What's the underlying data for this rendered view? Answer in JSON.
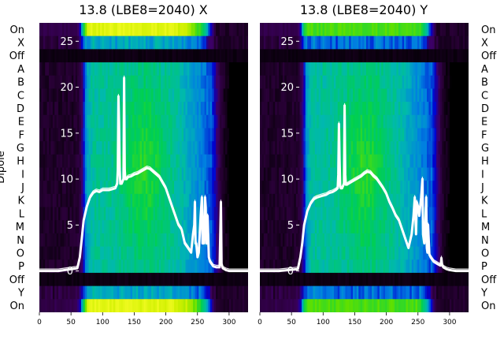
{
  "chart_data": {
    "type": "heatmap",
    "ylabel": "Dipole",
    "row_labels": [
      "On",
      "X",
      "Off",
      "A",
      "B",
      "C",
      "D",
      "E",
      "F",
      "G",
      "H",
      "I",
      "J",
      "K",
      "L",
      "M",
      "N",
      "O",
      "P",
      "Off",
      "Y",
      "On"
    ],
    "x_ticks": [
      "0",
      "50",
      "100",
      "150",
      "200",
      "250",
      "300"
    ],
    "overlay_y_ticks": [
      "0",
      "5",
      "10",
      "15",
      "20",
      "25"
    ],
    "xlim": [
      0,
      330
    ],
    "overlay_ylim": [
      -4.5,
      27
    ],
    "colormap": [
      "#000000",
      "#2a0038",
      "#3d0066",
      "#0000d0",
      "#0080e0",
      "#00b8b0",
      "#00d050",
      "#60e000",
      "#d0f000",
      "#ffff30"
    ],
    "panels": [
      {
        "title": "13.8 (LBE8=2040) X",
        "overlay_color": "#ffffff",
        "overlay_x": [
          0,
          30,
          60,
          64,
          67,
          70,
          75,
          80,
          85,
          90,
          95,
          100,
          105,
          110,
          115,
          120,
          123,
          124,
          125,
          126,
          127,
          128,
          130,
          133,
          134,
          135,
          136,
          138,
          140,
          145,
          150,
          155,
          160,
          165,
          170,
          175,
          180,
          185,
          190,
          195,
          200,
          205,
          210,
          215,
          220,
          225,
          230,
          235,
          240,
          243,
          245,
          246,
          247,
          248,
          250,
          252,
          255,
          257,
          258,
          260,
          262,
          263,
          264,
          265,
          266,
          268,
          270,
          275,
          280,
          285,
          286,
          287,
          288,
          290,
          295,
          300,
          310,
          320,
          330
        ],
        "overlay_y": [
          0,
          0,
          0.3,
          1.5,
          3.5,
          5.5,
          7,
          8,
          8.5,
          8.7,
          8.6,
          8.8,
          8.8,
          8.8,
          8.9,
          9,
          9.5,
          11,
          19,
          16,
          11,
          9.5,
          9.5,
          10,
          21,
          11,
          10,
          10,
          10.2,
          10.3,
          10.5,
          10.6,
          10.8,
          11,
          11.2,
          11.1,
          10.8,
          10.5,
          10.2,
          9.6,
          9,
          8,
          7,
          6,
          5,
          4.5,
          3,
          2.5,
          2,
          4,
          5,
          7.5,
          3,
          3,
          1.5,
          2,
          6,
          8,
          3,
          3,
          8,
          7,
          3,
          3,
          6,
          1.5,
          1,
          0.5,
          0.4,
          0.4,
          4,
          7.5,
          0.8,
          0.3,
          0.1,
          0,
          0,
          0,
          0
        ]
      },
      {
        "title": "13.8 (LBE8=2040) Y",
        "overlay_color": "#ffffff",
        "overlay_x": [
          0,
          30,
          60,
          64,
          67,
          70,
          75,
          80,
          85,
          90,
          95,
          100,
          105,
          110,
          115,
          120,
          123,
          124,
          125,
          126,
          127,
          128,
          130,
          133,
          134,
          135,
          136,
          138,
          140,
          145,
          150,
          155,
          160,
          165,
          170,
          175,
          180,
          185,
          190,
          195,
          200,
          205,
          210,
          215,
          220,
          225,
          230,
          235,
          240,
          243,
          245,
          246,
          247,
          248,
          250,
          252,
          255,
          257,
          258,
          260,
          262,
          263,
          264,
          265,
          266,
          268,
          270,
          275,
          280,
          285,
          286,
          287,
          288,
          290,
          295,
          300,
          310,
          320,
          330
        ],
        "overlay_y": [
          0,
          0,
          0.2,
          1.5,
          3,
          5,
          6.5,
          7.3,
          7.8,
          8,
          8.1,
          8.2,
          8.3,
          8.5,
          8.6,
          8.8,
          9,
          10.5,
          16,
          12,
          9.2,
          9,
          9,
          9.5,
          18,
          10.5,
          9.4,
          9.4,
          9.5,
          9.7,
          9.9,
          10.1,
          10.3,
          10.6,
          10.8,
          10.7,
          10.3,
          10,
          9.5,
          9,
          8.4,
          7.5,
          6.8,
          6,
          5.5,
          4.5,
          3.5,
          2.5,
          4,
          6,
          8,
          6,
          4,
          7.5,
          7,
          6,
          8,
          10,
          4,
          3,
          6,
          8,
          2.5,
          2,
          5,
          1.8,
          1.5,
          1,
          0.8,
          0.6,
          0.6,
          1.4,
          0.7,
          0.4,
          0.2,
          0.1,
          0,
          0,
          0
        ]
      }
    ]
  }
}
